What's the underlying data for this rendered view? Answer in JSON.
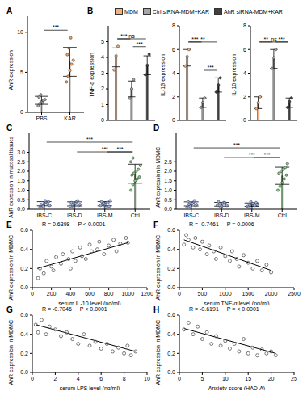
{
  "chart_data": [
    {
      "panel": "A",
      "type": "bar",
      "y_label": "AhR expression",
      "categories": [
        "PBS",
        "KAR"
      ],
      "values": [
        1.5,
        6.3
      ],
      "errors": [
        0.5,
        1.8
      ],
      "points": [
        [
          0.8,
          1.1,
          1.3,
          1.5,
          1.6,
          1.9,
          2.2,
          1.2
        ],
        [
          3.8,
          4.5,
          5.2,
          6.0,
          6.5,
          7.2,
          8.0,
          9.3
        ]
      ],
      "colors": [
        "#a6a6a6",
        "#f4a460"
      ],
      "ylim": [
        0,
        12
      ],
      "yticks": [
        0,
        5,
        10
      ],
      "significance": [
        {
          "from": 0,
          "to": 1,
          "label": "***"
        }
      ]
    },
    {
      "panel": "B",
      "type": "bar",
      "y_label": "TNF-α expression",
      "categories": [
        "MDM",
        "Ctrl siRNA-MDM+KAR",
        "AhR siRNA-MDM+KAR"
      ],
      "values": [
        4.0,
        2.0,
        3.5
      ],
      "errors": [
        0.6,
        0.5,
        0.6
      ],
      "points": [
        [
          3.2,
          4.1,
          4.7
        ],
        [
          1.4,
          2.0,
          2.6
        ],
        [
          2.9,
          3.5,
          4.2
        ]
      ],
      "colors": [
        "#f4b183",
        "#a6a6a6",
        "#404040"
      ],
      "ylim": [
        0,
        6
      ],
      "yticks": [
        0,
        1,
        2,
        3,
        4,
        5
      ],
      "tick_labels": "y",
      "legend": "top",
      "significance": [
        {
          "from": 0,
          "to": 1,
          "label": "***"
        },
        {
          "from": 1,
          "to": 2,
          "label": "***"
        },
        {
          "from": 0,
          "to": 2,
          "label": "ns"
        }
      ]
    },
    {
      "type": "bar",
      "y_label": "IL-1β expression",
      "categories": [
        "MDM",
        "Ctrl siRNA-MDM+KAR",
        "AhR siRNA-MDM+KAR"
      ],
      "values": [
        5.3,
        1.5,
        3.0
      ],
      "errors": [
        0.7,
        0.4,
        0.6
      ],
      "points": [
        [
          4.6,
          5.4,
          6.0
        ],
        [
          1.1,
          1.5,
          1.9
        ],
        [
          2.4,
          3.0,
          3.6
        ]
      ],
      "colors": [
        "#f4b183",
        "#a6a6a6",
        "#404040"
      ],
      "ylim": [
        0,
        8
      ],
      "yticks": [
        0,
        2,
        4,
        6,
        8
      ],
      "tick_labels": "y",
      "significance": [
        {
          "from": 0,
          "to": 1,
          "label": "***"
        },
        {
          "from": 1,
          "to": 2,
          "label": "***"
        },
        {
          "from": 0,
          "to": 2,
          "label": "**"
        }
      ]
    },
    {
      "type": "bar",
      "y_label": "IL-10 expression",
      "categories": [
        "MDM",
        "Ctrl siRNA-MDM+KAR",
        "AhR siRNA-MDM+KAR"
      ],
      "values": [
        1.5,
        5.2,
        1.5
      ],
      "errors": [
        0.5,
        0.8,
        0.4
      ],
      "points": [
        [
          1.0,
          1.5,
          2.0
        ],
        [
          4.4,
          5.3,
          6.0
        ],
        [
          1.1,
          1.6,
          1.9
        ]
      ],
      "colors": [
        "#f4b183",
        "#a6a6a6",
        "#404040"
      ],
      "ylim": [
        0,
        8
      ],
      "yticks": [
        0,
        2,
        4,
        6,
        8
      ],
      "tick_labels": "y",
      "significance": [
        {
          "from": 0,
          "to": 1,
          "label": "**"
        },
        {
          "from": 1,
          "to": 2,
          "label": "***"
        },
        {
          "from": 0,
          "to": 2,
          "label": "ns"
        }
      ]
    },
    {
      "panel": "C",
      "type": "bar",
      "y_label": "AhR expression in mucosal tissues",
      "categories": [
        "IBS-C",
        "IBS-D",
        "IBS-M",
        "Ctrl"
      ],
      "values": [
        0.29,
        0.28,
        0.29,
        1.87
      ],
      "errors": [
        0.11,
        0.11,
        0.11,
        0.5
      ],
      "points": [
        [
          0.1,
          0.2,
          0.3,
          0.35,
          0.4,
          0.25,
          0.15,
          0.45,
          0.3,
          0.2
        ],
        [
          0.15,
          0.25,
          0.3,
          0.4,
          0.2,
          0.35,
          0.1,
          0.3,
          0.45,
          0.25
        ],
        [
          0.2,
          0.3,
          0.25,
          0.35,
          0.15,
          0.4,
          0.3,
          0.1,
          0.35,
          0.45
        ],
        [
          1.0,
          1.3,
          1.5,
          1.6,
          1.7,
          1.8,
          1.9,
          2.0,
          2.1,
          2.3,
          2.5,
          2.7
        ]
      ],
      "colors": [
        "#9db4f0",
        "#9db4f0",
        "#9db4f0",
        "#7ed37e"
      ],
      "ylim": [
        0,
        4
      ],
      "yticks": [
        {
          "value": 0,
          "label": "0.0"
        },
        0.5,
        {
          "value": 1,
          "label": "1.0"
        },
        1.5,
        {
          "value": 2,
          "label": "2.0"
        },
        2.5,
        {
          "value": 3,
          "label": "3.0"
        }
      ],
      "significance": [
        {
          "from": 2,
          "to": 3,
          "label": "***"
        },
        {
          "from": 1,
          "to": 3,
          "label": "***"
        },
        {
          "from": 0,
          "to": 3,
          "label": "***"
        }
      ]
    },
    {
      "panel": "D",
      "type": "bar",
      "y_label": "AhR expression in MDMC",
      "categories": [
        "IBS-C",
        "IBS-D",
        "IBS-M",
        "Ctrl"
      ],
      "values": [
        0.28,
        0.26,
        0.24,
        1.76
      ],
      "errors": [
        0.11,
        0.1,
        0.09,
        0.45
      ],
      "points": [
        [
          0.1,
          0.25,
          0.3,
          0.35,
          0.2,
          0.4,
          0.15,
          0.3,
          0.45,
          0.25
        ],
        [
          0.2,
          0.3,
          0.15,
          0.35,
          0.25,
          0.4,
          0.1,
          0.3,
          0.35,
          0.2
        ],
        [
          0.15,
          0.2,
          0.3,
          0.25,
          0.35,
          0.1,
          0.4,
          0.3,
          0.2,
          0.25
        ],
        [
          1.0,
          1.2,
          1.4,
          1.6,
          1.8,
          1.9,
          2.0,
          2.1,
          2.2,
          2.4
        ]
      ],
      "colors": [
        "#9db4f0",
        "#9db4f0",
        "#9db4f0",
        "#7ed37e"
      ],
      "ylim": [
        0,
        4
      ],
      "yticks": [
        {
          "value": 0,
          "label": "0.0"
        },
        0.5,
        {
          "value": 1,
          "label": "1.0"
        },
        1.5,
        {
          "value": 2,
          "label": "2.0"
        },
        2.5
      ],
      "significance": [
        {
          "from": 2,
          "to": 3,
          "label": "***"
        },
        {
          "from": 1,
          "to": 3,
          "label": "***"
        },
        {
          "from": 0,
          "to": 3,
          "label": "***"
        }
      ]
    },
    {
      "panel": "E",
      "type": "scatter",
      "marker": "circle",
      "color": "#555555",
      "x_label": "serum IL-10 level (pg/ml)",
      "y_label": "AhR expression in MDMC",
      "annotations": [
        "R = 0.6398",
        "P < 0.0001"
      ],
      "x": [
        60,
        80,
        120,
        150,
        200,
        220,
        250,
        300,
        320,
        380,
        400,
        420,
        450,
        500,
        520,
        560,
        600,
        620,
        680,
        700,
        750,
        800,
        850,
        880,
        920,
        980,
        1000
      ],
      "values": [
        0.1,
        0.2,
        0.15,
        0.28,
        0.22,
        0.18,
        0.32,
        0.25,
        0.35,
        0.3,
        0.2,
        0.38,
        0.28,
        0.42,
        0.33,
        0.3,
        0.45,
        0.38,
        0.4,
        0.48,
        0.35,
        0.44,
        0.5,
        0.38,
        0.46,
        0.52,
        0.47
      ],
      "fit_line": {
        "x": [
          50,
          1000
        ],
        "values": [
          0.2,
          0.47
        ]
      },
      "xlim": [
        0,
        1200
      ],
      "xticks": [
        0,
        200,
        400,
        600,
        800,
        1000,
        1200
      ],
      "ylim": [
        0,
        0.6
      ],
      "yticks": [
        {
          "value": 0,
          "label": "0.0"
        },
        0.2,
        0.4,
        0.6
      ]
    },
    {
      "panel": "F",
      "type": "scatter",
      "marker": "circle",
      "color": "#555555",
      "x_label": "serum TNF-α level (pg/ml)",
      "y_label": "AhR expression in MDMC",
      "annotations": [
        "R = -0.7461",
        "P = 0.0006"
      ],
      "x": [
        100,
        150,
        200,
        300,
        350,
        450,
        500,
        600,
        650,
        750,
        800,
        900,
        1000,
        1100,
        1150,
        1250,
        1300,
        1400,
        1500,
        1600,
        1700,
        1800,
        1900,
        2000
      ],
      "values": [
        0.45,
        0.55,
        0.5,
        0.42,
        0.52,
        0.4,
        0.48,
        0.35,
        0.44,
        0.38,
        0.3,
        0.42,
        0.33,
        0.28,
        0.38,
        0.3,
        0.22,
        0.34,
        0.26,
        0.2,
        0.28,
        0.18,
        0.24,
        0.16
      ],
      "fit_line": {
        "x": [
          100,
          2000
        ],
        "values": [
          0.5,
          0.18
        ]
      },
      "xlim": [
        0,
        2500
      ],
      "xticks": [
        0,
        500,
        1000,
        1500,
        2000,
        2500
      ],
      "ylim": [
        0,
        0.6
      ],
      "yticks": [
        {
          "value": 0,
          "label": "0.0"
        },
        0.2,
        0.4,
        0.6
      ]
    },
    {
      "panel": "G",
      "type": "scatter",
      "marker": "circle",
      "color": "#555555",
      "x_label": "serum LPS level (ng/ml)",
      "y_label": "AhR expression in MDMC",
      "annotations": [
        "R = -0.7046",
        "P < 0.0001"
      ],
      "x": [
        0.3,
        0.5,
        0.8,
        1.2,
        1.5,
        2.0,
        2.5,
        3.0,
        3.5,
        4.0,
        4.5,
        5.0,
        5.5,
        6.0,
        6.5,
        7.0,
        7.5,
        8.0,
        8.3,
        8.6,
        9.0
      ],
      "values": [
        0.5,
        0.42,
        0.55,
        0.4,
        0.48,
        0.45,
        0.38,
        0.42,
        0.35,
        0.3,
        0.4,
        0.28,
        0.32,
        0.25,
        0.3,
        0.22,
        0.26,
        0.2,
        0.28,
        0.18,
        0.22
      ],
      "fit_line": {
        "x": [
          0.3,
          9
        ],
        "values": [
          0.5,
          0.22
        ]
      },
      "xlim": [
        0,
        10
      ],
      "xticks": [
        0,
        2,
        4,
        6,
        8,
        10
      ],
      "ylim": [
        0,
        0.6
      ],
      "yticks": [
        {
          "value": 0,
          "label": "0.0"
        },
        0.2,
        0.4,
        0.6
      ]
    },
    {
      "panel": "H",
      "type": "scatter",
      "marker": "circle",
      "color": "#555555",
      "x_label": "Anxiety score (HAD-A)",
      "y_label": "AhR expression in MDMC",
      "annotations": [
        "R = -0.6191",
        "P = < 0.0001"
      ],
      "x": [
        1,
        2,
        3,
        4,
        5,
        6,
        7,
        8,
        9,
        10,
        11,
        12,
        13,
        14,
        15,
        16,
        17,
        18,
        19,
        20,
        21
      ],
      "values": [
        0.45,
        0.52,
        0.4,
        0.48,
        0.35,
        0.42,
        0.3,
        0.38,
        0.28,
        0.33,
        0.25,
        0.3,
        0.22,
        0.35,
        0.2,
        0.26,
        0.18,
        0.24,
        0.2,
        0.22,
        0.18
      ],
      "fit_line": {
        "x": [
          1,
          21
        ],
        "values": [
          0.46,
          0.2
        ]
      },
      "xlim": [
        0,
        25
      ],
      "xticks": [
        0,
        5,
        10,
        15,
        20,
        25
      ],
      "ylim": [
        0,
        0.6
      ],
      "yticks": [
        {
          "value": 0,
          "label": "0.0"
        },
        0.2,
        0.4,
        0.6
      ]
    }
  ]
}
